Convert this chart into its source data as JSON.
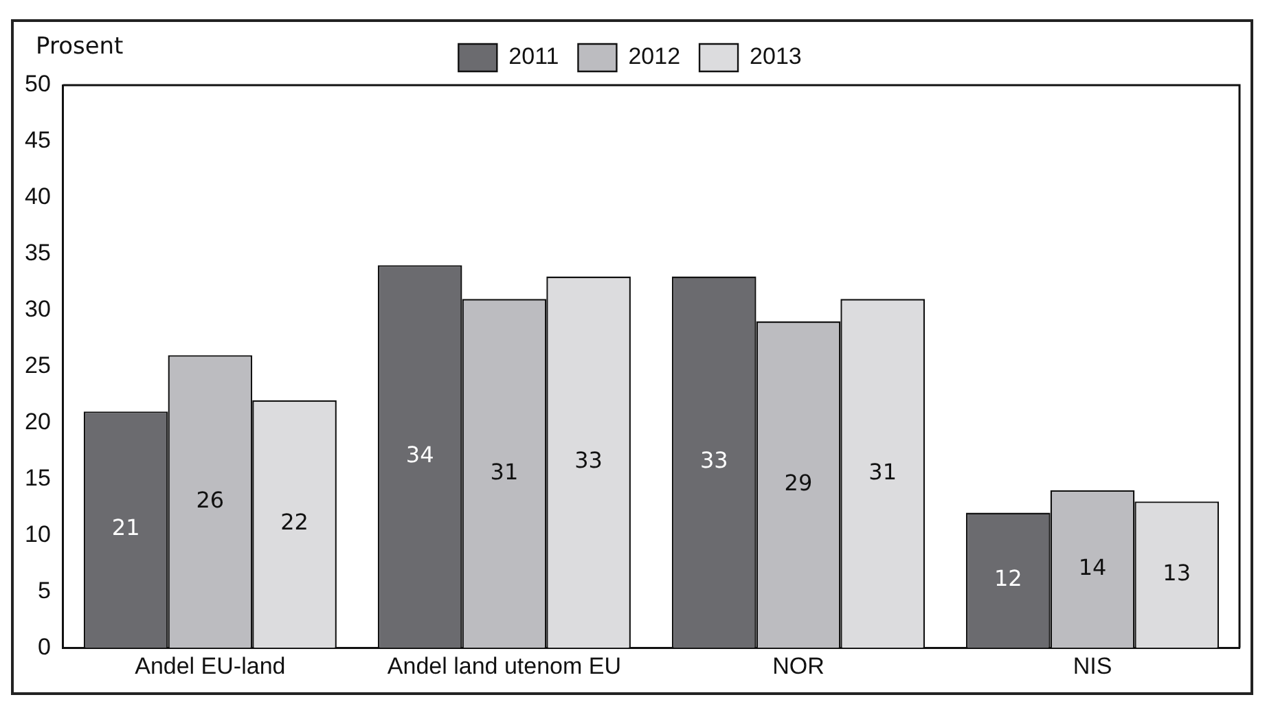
{
  "chart_data": {
    "type": "bar",
    "ylabel": "Prosent",
    "categories": [
      "Andel EU-land",
      "Andel land utenom EU",
      "NOR",
      "NIS"
    ],
    "series": [
      {
        "name": "2011",
        "color": "#6b6b6f",
        "values": [
          21,
          34,
          33,
          12
        ]
      },
      {
        "name": "2012",
        "color": "#bcbcc0",
        "values": [
          26,
          31,
          29,
          14
        ]
      },
      {
        "name": "2013",
        "color": "#dcdcde",
        "values": [
          22,
          33,
          31,
          13
        ]
      }
    ],
    "ylim": [
      0,
      50
    ],
    "yticks": [
      0,
      5,
      10,
      15,
      20,
      25,
      30,
      35,
      40,
      45,
      50
    ],
    "grid": false,
    "legend": "top",
    "data_labels": true
  }
}
